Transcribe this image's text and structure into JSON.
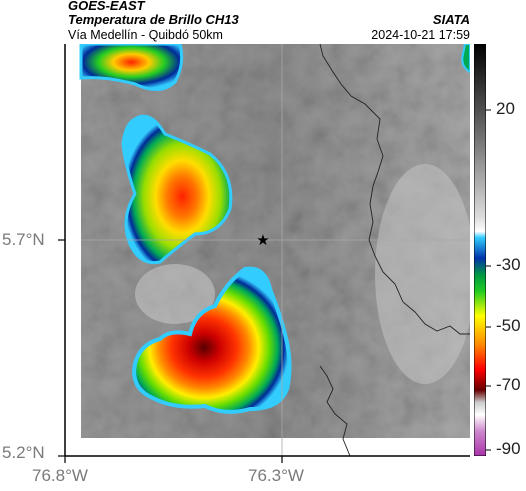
{
  "header": {
    "source": "GOES-EAST",
    "product": "Temperatura de Brillo CH13",
    "route": "Vía Medellín - Quibdó 50km",
    "agency": "SIATA",
    "timestamp": "2024-10-21 17:59"
  },
  "map": {
    "y_axis_labels": [
      "5.7°N",
      "5.2°N"
    ],
    "x_axis_labels": [
      "76.8°W",
      "76.3°W"
    ],
    "marker": "star-icon",
    "extent_lon": [
      -76.8,
      -76.2
    ],
    "extent_lat": [
      5.2,
      5.95
    ]
  },
  "colorbar": {
    "labels": [
      "20",
      "-30",
      "-50",
      "-70",
      "-90"
    ],
    "colors": [
      "#000000",
      "#666666",
      "#c0c0c0",
      "#ffffff",
      "#00ccff",
      "#0033aa",
      "#00aa00",
      "#ffff00",
      "#ff6600",
      "#ff0000",
      "#660000",
      "#ffffff",
      "#bb77bb",
      "#aa44aa"
    ]
  }
}
